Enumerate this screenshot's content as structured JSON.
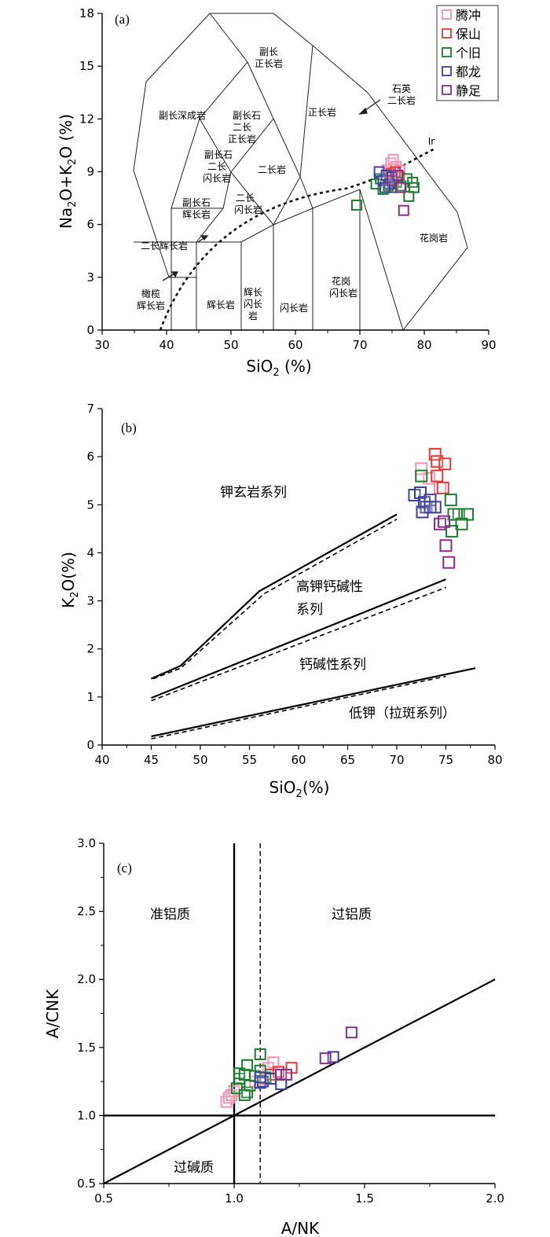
{
  "legend": {
    "items": [
      {
        "name": "腾冲",
        "color": "#f48fb1"
      },
      {
        "name": "保山",
        "color": "#e53935"
      },
      {
        "name": "个旧",
        "color": "#1b7d2e"
      },
      {
        "name": "都龙",
        "color": "#3f3f9f"
      },
      {
        "name": "静足",
        "color": "#8e2c8e"
      }
    ]
  },
  "chart_data": [
    {
      "id": "a",
      "type": "scatter",
      "panel_label": "(a)",
      "xlabel_parts": [
        "SiO",
        "2",
        " (%)"
      ],
      "ylabel_parts": [
        "Na",
        "2",
        "O+K",
        "2",
        "O (%)"
      ],
      "xlim": [
        30,
        90
      ],
      "ylim": [
        0,
        18
      ],
      "xticks": [
        30,
        40,
        50,
        60,
        70,
        80,
        90
      ],
      "yticks": [
        0,
        3,
        6,
        9,
        12,
        15,
        18
      ],
      "field_labels": [
        {
          "id": "nepheline-syenite",
          "lines": [
            "副长",
            "正长岩"
          ]
        },
        {
          "id": "foid-monzosyenite",
          "lines": [
            "副长石",
            "二长",
            "正长岩"
          ]
        },
        {
          "id": "foid-plutonite",
          "lines": [
            "副长深成岩"
          ]
        },
        {
          "id": "foid-monzodiorite",
          "lines": [
            "副长石",
            "二长",
            "闪长岩"
          ]
        },
        {
          "id": "foid-gabbro",
          "lines": [
            "副长石",
            "辉长岩"
          ]
        },
        {
          "id": "syenite",
          "lines": [
            "正长岩"
          ]
        },
        {
          "id": "quartz-monzonite",
          "lines": [
            "石英",
            "二长岩"
          ]
        },
        {
          "id": "monzonite",
          "lines": [
            "二长岩"
          ]
        },
        {
          "id": "monzodiorite",
          "lines": [
            "二长",
            "闪长岩"
          ]
        },
        {
          "id": "monzogabbro",
          "lines": [
            "二长辉长岩"
          ]
        },
        {
          "id": "peridotgabbro",
          "lines": [
            "橄榄",
            "辉长岩"
          ]
        },
        {
          "id": "gabbro",
          "lines": [
            "辉长岩"
          ]
        },
        {
          "id": "gabbroic-diorite",
          "lines": [
            "辉长",
            "闪长",
            "岩"
          ]
        },
        {
          "id": "diorite",
          "lines": [
            "闪长岩"
          ]
        },
        {
          "id": "granodiorite",
          "lines": [
            "花岗",
            "闪长岩"
          ]
        },
        {
          "id": "granite",
          "lines": [
            "花岗岩"
          ]
        }
      ],
      "curve_label": "Ir",
      "series": [
        {
          "name": "腾冲",
          "points": [
            [
              74.2,
              9.1
            ],
            [
              74.8,
              9.5
            ],
            [
              75.2,
              9.7
            ],
            [
              75.6,
              9.3
            ],
            [
              76.2,
              9.1
            ],
            [
              74.5,
              8.6
            ]
          ]
        },
        {
          "name": "保山",
          "points": [
            [
              74.8,
              8.9
            ],
            [
              75.3,
              8.4
            ],
            [
              76.1,
              8.7
            ],
            [
              75.5,
              9.0
            ]
          ]
        },
        {
          "name": "个旧",
          "points": [
            [
              72.5,
              8.3
            ],
            [
              73.2,
              8.6
            ],
            [
              73.6,
              8.0
            ],
            [
              74.4,
              8.2
            ],
            [
              75.1,
              8.1
            ],
            [
              75.7,
              8.4
            ],
            [
              76.4,
              8.2
            ],
            [
              77.3,
              8.6
            ],
            [
              77.6,
              7.6
            ],
            [
              78.2,
              8.4
            ],
            [
              78.4,
              8.1
            ],
            [
              69.5,
              7.1
            ]
          ]
        },
        {
          "name": "都龙",
          "points": [
            [
              73.0,
              9.0
            ],
            [
              73.6,
              8.5
            ],
            [
              74.1,
              8.8
            ],
            [
              74.6,
              8.3
            ],
            [
              75.0,
              8.7
            ],
            [
              73.9,
              8.1
            ]
          ]
        },
        {
          "name": "静足",
          "points": [
            [
              75.0,
              8.5
            ],
            [
              75.9,
              8.8
            ],
            [
              76.3,
              8.1
            ],
            [
              76.8,
              6.8
            ]
          ]
        }
      ]
    },
    {
      "id": "b",
      "type": "scatter",
      "panel_label": "(b)",
      "xlabel_parts": [
        "SiO",
        "2",
        "(%)"
      ],
      "ylabel_parts": [
        "K",
        "2",
        "O(%)"
      ],
      "xlim": [
        40,
        80
      ],
      "ylim": [
        0,
        7
      ],
      "xticks": [
        40,
        45,
        50,
        55,
        60,
        65,
        70,
        75,
        80
      ],
      "yticks": [
        0,
        1,
        2,
        3,
        4,
        5,
        6,
        7
      ],
      "region_labels": [
        {
          "id": "shoshonite",
          "lines": [
            "钾玄岩系列"
          ]
        },
        {
          "id": "high-k-calc-alkaline",
          "lines": [
            "高钾钙碱性",
            "系列"
          ]
        },
        {
          "id": "calc-alkaline",
          "lines": [
            "钙碱性系列"
          ]
        },
        {
          "id": "low-k",
          "lines": [
            "低钾（拉斑系列）"
          ]
        }
      ],
      "boundaries": {
        "solid": [
          [
            [
              45,
              1.38
            ],
            [
              48,
              1.65
            ],
            [
              56,
              3.2
            ],
            [
              70,
              4.8
            ]
          ],
          [
            [
              45,
              0.98
            ],
            [
              75,
              3.45
            ]
          ],
          [
            [
              45,
              0.18
            ],
            [
              78,
              1.6
            ]
          ]
        ],
        "dashed": [
          [
            [
              45.2,
              1.38
            ],
            [
              48,
              1.6
            ],
            [
              56.5,
              3.15
            ],
            [
              70,
              4.7
            ]
          ],
          [
            [
              45,
              0.92
            ],
            [
              75,
              3.28
            ]
          ],
          [
            [
              45,
              0.13
            ],
            [
              75,
              1.43
            ]
          ]
        ]
      },
      "series": [
        {
          "name": "腾冲",
          "points": [
            [
              72.5,
              5.75
            ],
            [
              73.3,
              5.55
            ],
            [
              74.4,
              5.35
            ]
          ]
        },
        {
          "name": "保山",
          "points": [
            [
              73.9,
              6.05
            ],
            [
              74.1,
              5.9
            ],
            [
              74.9,
              5.85
            ],
            [
              74.1,
              5.6
            ],
            [
              74.7,
              5.35
            ]
          ]
        },
        {
          "name": "个旧",
          "points": [
            [
              72.5,
              5.6
            ],
            [
              75.5,
              5.1
            ],
            [
              76.3,
              4.8
            ],
            [
              77.2,
              4.8
            ],
            [
              75.8,
              4.8
            ],
            [
              76.6,
              4.6
            ],
            [
              75.6,
              4.45
            ]
          ]
        },
        {
          "name": "都龙",
          "points": [
            [
              71.8,
              5.2
            ],
            [
              72.4,
              5.25
            ],
            [
              72.8,
              5.05
            ],
            [
              73.4,
              5.1
            ],
            [
              73.0,
              4.95
            ],
            [
              73.9,
              4.95
            ],
            [
              72.6,
              4.85
            ],
            [
              73.4,
              4.95
            ]
          ]
        },
        {
          "name": "静足",
          "points": [
            [
              74.4,
              4.6
            ],
            [
              74.8,
              4.65
            ],
            [
              75.0,
              4.15
            ],
            [
              75.3,
              3.8
            ]
          ]
        }
      ]
    },
    {
      "id": "c",
      "type": "scatter",
      "panel_label": "(c)",
      "xlabel": "A/NK",
      "ylabel": "A/CNK",
      "xlim": [
        0.5,
        2.0
      ],
      "ylim": [
        0.5,
        3.0
      ],
      "xticks": [
        "0.5",
        "1.0",
        "1.5",
        "2.0"
      ],
      "yticks": [
        "0.5",
        "1.0",
        "1.5",
        "2.0",
        "2.5",
        "3.0"
      ],
      "region_labels": [
        {
          "id": "metaluminous",
          "lines": [
            "准铝质"
          ]
        },
        {
          "id": "peraluminous",
          "lines": [
            "过铝质"
          ]
        },
        {
          "id": "peralkaline",
          "lines": [
            "过碱质"
          ]
        }
      ],
      "reference_lines": {
        "x": 1.0,
        "y": 1.0,
        "dashed_x": 1.1,
        "diagonal": [
          [
            0.5,
            0.5
          ],
          [
            2.0,
            2.0
          ]
        ]
      },
      "series": [
        {
          "name": "腾冲",
          "points": [
            [
              0.97,
              1.1
            ],
            [
              0.98,
              1.13
            ],
            [
              0.99,
              1.15
            ],
            [
              1.0,
              1.18
            ],
            [
              1.15,
              1.39
            ],
            [
              1.13,
              1.35
            ],
            [
              1.08,
              1.25
            ]
          ]
        },
        {
          "name": "保山",
          "points": [
            [
              1.22,
              1.35
            ],
            [
              1.17,
              1.32
            ],
            [
              1.14,
              1.3
            ],
            [
              1.12,
              1.27
            ]
          ]
        },
        {
          "name": "个旧",
          "points": [
            [
              1.01,
              1.2
            ],
            [
              1.02,
              1.27
            ],
            [
              1.02,
              1.31
            ],
            [
              1.04,
              1.3
            ],
            [
              1.05,
              1.37
            ],
            [
              1.05,
              1.17
            ],
            [
              1.06,
              1.22
            ],
            [
              1.08,
              1.29
            ],
            [
              1.1,
              1.45
            ],
            [
              1.1,
              1.33
            ],
            [
              1.12,
              1.28
            ],
            [
              1.04,
              1.15
            ]
          ]
        },
        {
          "name": "都龙",
          "points": [
            [
              1.1,
              1.24
            ],
            [
              1.11,
              1.25
            ],
            [
              1.14,
              1.27
            ],
            [
              1.18,
              1.23
            ],
            [
              1.38,
              1.43
            ],
            [
              1.1,
              1.28
            ]
          ]
        },
        {
          "name": "静足",
          "points": [
            [
              1.35,
              1.42
            ],
            [
              1.45,
              1.61
            ],
            [
              1.18,
              1.3
            ],
            [
              1.2,
              1.3
            ]
          ]
        }
      ]
    }
  ]
}
